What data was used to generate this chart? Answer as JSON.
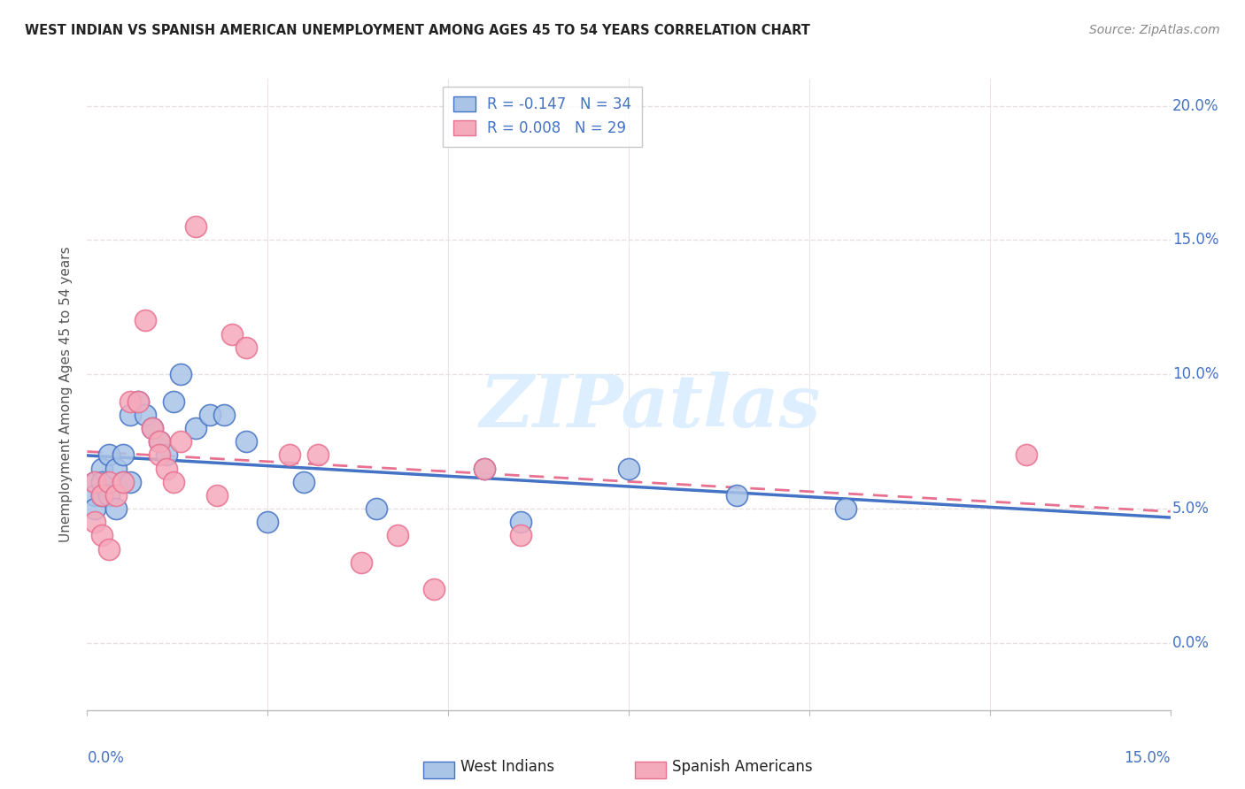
{
  "title": "WEST INDIAN VS SPANISH AMERICAN UNEMPLOYMENT AMONG AGES 45 TO 54 YEARS CORRELATION CHART",
  "source": "Source: ZipAtlas.com",
  "ylabel": "Unemployment Among Ages 45 to 54 years",
  "legend_r_wi": "R = -0.147",
  "legend_n_wi": "N = 34",
  "legend_r_sa": "R = 0.008",
  "legend_n_sa": "N = 29",
  "legend_west_indians": "West Indians",
  "legend_spanish_americans": "Spanish Americans",
  "west_indians_x": [
    0.001,
    0.001,
    0.001,
    0.002,
    0.002,
    0.002,
    0.003,
    0.003,
    0.003,
    0.004,
    0.004,
    0.005,
    0.005,
    0.006,
    0.006,
    0.007,
    0.008,
    0.009,
    0.01,
    0.011,
    0.012,
    0.013,
    0.015,
    0.017,
    0.019,
    0.022,
    0.025,
    0.03,
    0.04,
    0.055,
    0.06,
    0.075,
    0.09,
    0.105
  ],
  "west_indians_y": [
    0.06,
    0.055,
    0.05,
    0.065,
    0.06,
    0.055,
    0.07,
    0.06,
    0.055,
    0.065,
    0.05,
    0.07,
    0.06,
    0.085,
    0.06,
    0.09,
    0.085,
    0.08,
    0.075,
    0.07,
    0.09,
    0.1,
    0.08,
    0.085,
    0.085,
    0.075,
    0.045,
    0.06,
    0.05,
    0.065,
    0.045,
    0.065,
    0.055,
    0.05
  ],
  "spanish_americans_x": [
    0.001,
    0.001,
    0.002,
    0.002,
    0.003,
    0.003,
    0.004,
    0.005,
    0.006,
    0.007,
    0.008,
    0.009,
    0.01,
    0.01,
    0.011,
    0.012,
    0.013,
    0.015,
    0.018,
    0.02,
    0.022,
    0.028,
    0.032,
    0.038,
    0.043,
    0.048,
    0.055,
    0.06,
    0.13
  ],
  "spanish_americans_y": [
    0.06,
    0.045,
    0.055,
    0.04,
    0.06,
    0.035,
    0.055,
    0.06,
    0.09,
    0.09,
    0.12,
    0.08,
    0.075,
    0.07,
    0.065,
    0.06,
    0.075,
    0.155,
    0.055,
    0.115,
    0.11,
    0.07,
    0.07,
    0.03,
    0.04,
    0.02,
    0.065,
    0.04,
    0.07
  ],
  "wi_color": "#aac4e8",
  "sa_color": "#f5aabb",
  "wi_line_color": "#4472c4",
  "sa_line_color": "#e87090",
  "watermark_text": "ZIPatlas",
  "watermark_color": "#ddeeff",
  "xlim": [
    0.0,
    0.15
  ],
  "ylim": [
    -0.025,
    0.21
  ],
  "yticks": [
    0.0,
    0.05,
    0.1,
    0.15,
    0.2
  ],
  "xticks": [
    0.0,
    0.025,
    0.05,
    0.075,
    0.1,
    0.125,
    0.15
  ],
  "background_color": "#ffffff",
  "grid_color": "#e8dede"
}
